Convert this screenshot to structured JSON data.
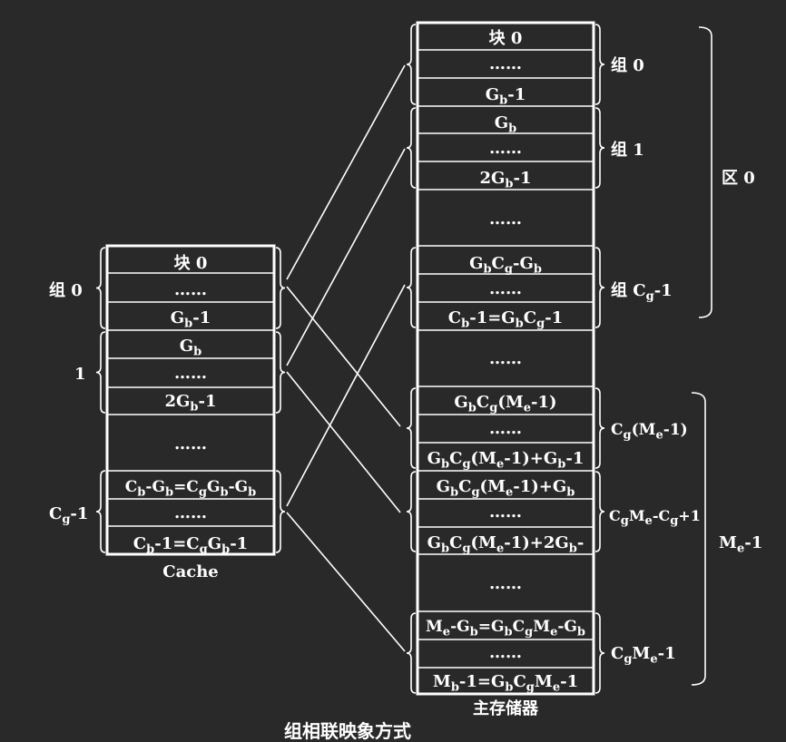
{
  "cache": {
    "rows": [
      "块 0",
      "……",
      "G_b-1",
      "G_b",
      "……",
      "2G_b-1",
      "……",
      "C_b-G_b=C_gG_b-G_b",
      "……",
      "C_b-1=C_gG_b-1"
    ],
    "group_labels": [
      "组 0",
      "1",
      "C_g-1"
    ],
    "caption": "Cache"
  },
  "memory": {
    "rows": [
      "块 0",
      "……",
      "G_b-1",
      "G_b",
      "……",
      "2G_b-1",
      "……",
      "G_bC_g-G_b",
      "……",
      "C_b-1=G_bC_g-1",
      "……",
      "G_bC_g(M_e-1)",
      "……",
      "G_bC_g(M_e-1)+G_b-1",
      "G_bC_g(M_e-1)+G_b",
      "……",
      "G_bC_g(M_e-1)+2G_b-",
      "……",
      "M_e-G_b=G_bC_gM_e-G_b",
      "……",
      "M_b-1=G_bC_gM_e-1"
    ],
    "group_labels": [
      "组 0",
      "组 1",
      "组 C_g-1",
      "C_g(M_e-1)",
      "C_gM_e-C_g+1",
      "C_gM_e-1"
    ],
    "caption": "主存储器"
  },
  "regions": [
    "区 0",
    "M_e-1"
  ],
  "bottom_title": "组相联映象方式"
}
